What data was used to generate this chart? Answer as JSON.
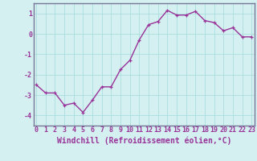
{
  "x": [
    0,
    1,
    2,
    3,
    4,
    5,
    6,
    7,
    8,
    9,
    10,
    11,
    12,
    13,
    14,
    15,
    16,
    17,
    18,
    19,
    20,
    21,
    22,
    23
  ],
  "y": [
    -2.5,
    -2.9,
    -2.9,
    -3.5,
    -3.4,
    -3.85,
    -3.25,
    -2.6,
    -2.6,
    -1.75,
    -1.3,
    -0.3,
    0.45,
    0.6,
    1.15,
    0.92,
    0.92,
    1.1,
    0.65,
    0.55,
    0.15,
    0.3,
    -0.15,
    -0.15
  ],
  "line_color": "#993399",
  "marker": "+",
  "marker_size": 3,
  "linewidth": 1.0,
  "background_color": "#d4f0f0",
  "grid_color": "#aadddd",
  "xlabel": "Windchill (Refroidissement éolien,°C)",
  "xlabel_fontsize": 7,
  "tick_fontsize": 6,
  "ylim": [
    -4.5,
    1.5
  ],
  "yticks": [
    -4,
    -3,
    -2,
    -1,
    0,
    1
  ],
  "xlim": [
    -0.3,
    23.3
  ],
  "xticks": [
    0,
    1,
    2,
    3,
    4,
    5,
    6,
    7,
    8,
    9,
    10,
    11,
    12,
    13,
    14,
    15,
    16,
    17,
    18,
    19,
    20,
    21,
    22,
    23
  ],
  "spine_color": "#777799"
}
